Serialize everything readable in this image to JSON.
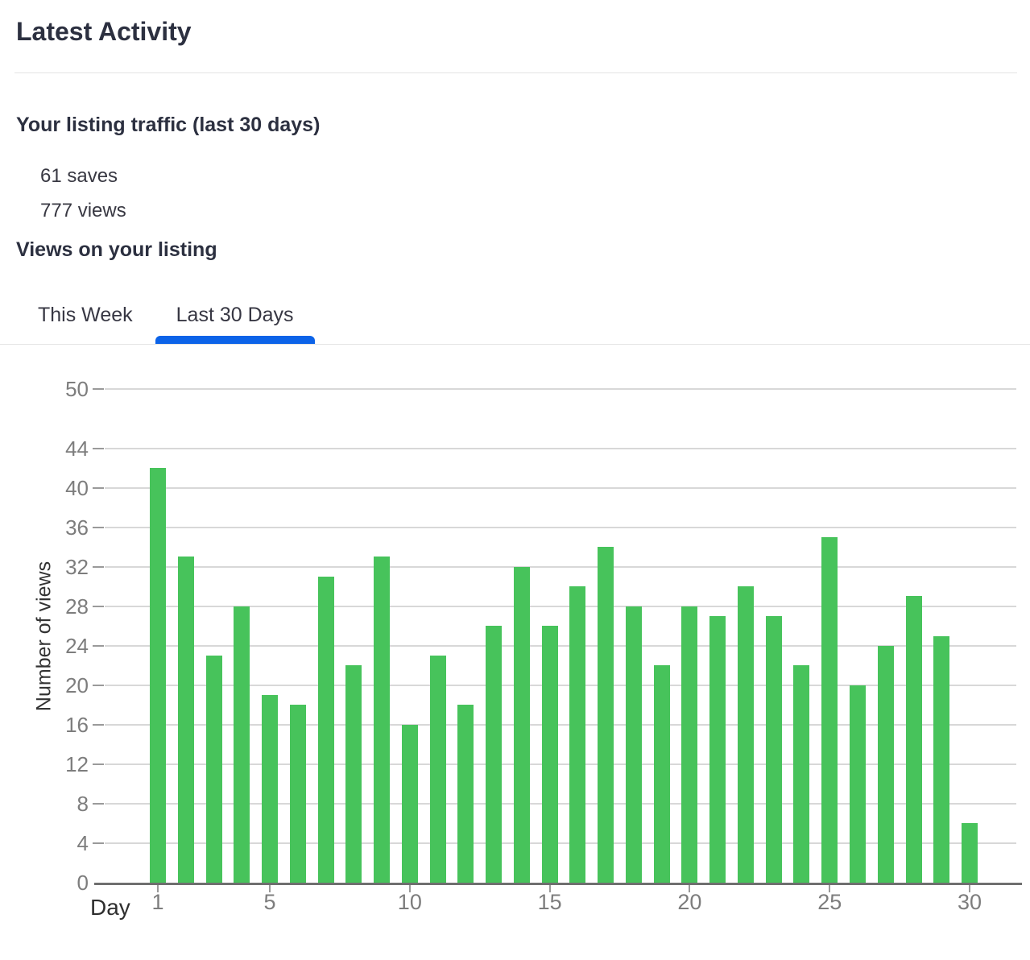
{
  "page": {
    "title": "Latest Activity"
  },
  "traffic": {
    "heading": "Your listing traffic (last 30 days)",
    "stats": [
      "61 saves",
      "777 views"
    ]
  },
  "views_section": {
    "heading": "Views on your listing",
    "tabs": [
      {
        "label": "This Week",
        "active": false
      },
      {
        "label": "Last 30 Days",
        "active": true
      }
    ]
  },
  "colors": {
    "bar_green": "#47c35b",
    "tab_active_blue": "#0c63e8",
    "gridline_gray": "#d8d8d8",
    "axis_gray": "#6f6f6f",
    "tick_text_gray": "#7d7d7d",
    "heading_dark": "#2c3040"
  },
  "chart_data": {
    "type": "bar",
    "title": "",
    "xlabel": "Day",
    "ylabel": "Number of views",
    "categories": [
      1,
      2,
      3,
      4,
      5,
      6,
      7,
      8,
      9,
      10,
      11,
      12,
      13,
      14,
      15,
      16,
      17,
      18,
      19,
      20,
      21,
      22,
      23,
      24,
      25,
      26,
      27,
      28,
      29,
      30
    ],
    "values": [
      42,
      33,
      23,
      28,
      19,
      18,
      31,
      22,
      33,
      16,
      23,
      18,
      26,
      32,
      26,
      30,
      34,
      28,
      22,
      28,
      27,
      30,
      27,
      22,
      35,
      20,
      24,
      29,
      25,
      6
    ],
    "total_views": 777,
    "yticks": [
      0,
      4,
      8,
      12,
      16,
      20,
      24,
      28,
      32,
      36,
      40,
      44,
      50
    ],
    "xticks": [
      1,
      5,
      10,
      15,
      20,
      25,
      30
    ],
    "ylim": [
      0,
      50
    ],
    "grid": true,
    "legend": false,
    "bar_color": "#47c35b"
  }
}
